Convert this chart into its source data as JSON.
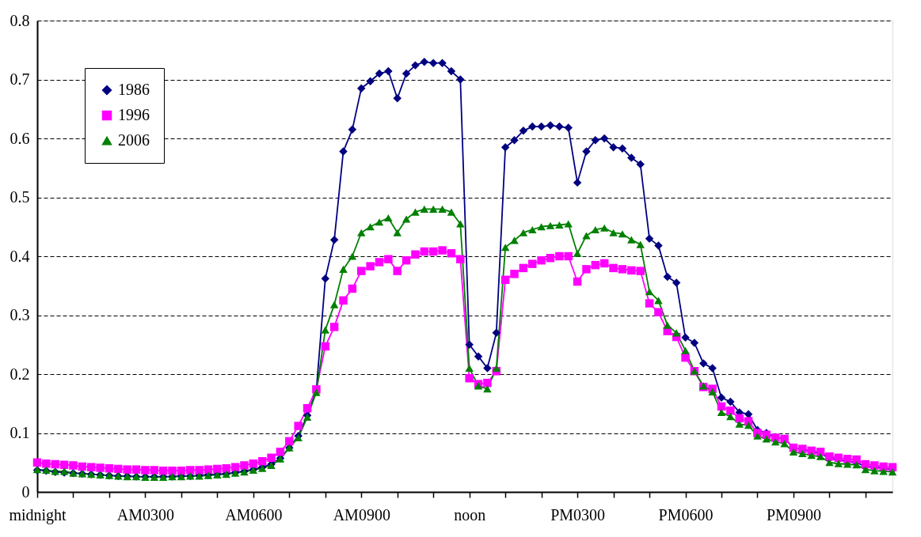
{
  "chart_data": {
    "type": "line",
    "categories": [
      "midnight",
      null,
      null,
      null,
      null,
      null,
      null,
      null,
      null,
      null,
      null,
      null,
      "AM0300",
      null,
      null,
      null,
      null,
      null,
      null,
      null,
      null,
      null,
      null,
      null,
      "AM0600",
      null,
      null,
      null,
      null,
      null,
      null,
      null,
      null,
      null,
      null,
      null,
      "AM0900",
      null,
      null,
      null,
      null,
      null,
      null,
      null,
      null,
      null,
      null,
      null,
      "noon",
      null,
      null,
      null,
      null,
      null,
      null,
      null,
      null,
      null,
      null,
      null,
      "PM0300",
      null,
      null,
      null,
      null,
      null,
      null,
      null,
      null,
      null,
      null,
      null,
      "PM0600",
      null,
      null,
      null,
      null,
      null,
      null,
      null,
      null,
      null,
      null,
      null,
      "PM0900",
      null,
      null,
      null,
      null,
      null,
      null,
      null,
      null,
      null,
      null,
      null
    ],
    "series": [
      {
        "name": "1986",
        "color": "#000080",
        "marker": "diamond",
        "values": [
          0.037,
          0.036,
          0.034,
          0.033,
          0.032,
          0.031,
          0.03,
          0.029,
          0.028,
          0.027,
          0.027,
          0.026,
          0.026,
          0.026,
          0.026,
          0.026,
          0.027,
          0.027,
          0.028,
          0.029,
          0.03,
          0.031,
          0.033,
          0.035,
          0.038,
          0.042,
          0.047,
          0.057,
          0.075,
          0.095,
          0.13,
          0.172,
          0.362,
          0.428,
          0.578,
          0.615,
          0.685,
          0.697,
          0.71,
          0.714,
          0.668,
          0.71,
          0.724,
          0.73,
          0.728,
          0.728,
          0.714,
          0.7,
          0.25,
          0.23,
          0.21,
          0.27,
          0.585,
          0.597,
          0.613,
          0.62,
          0.62,
          0.622,
          0.62,
          0.618,
          0.525,
          0.578,
          0.597,
          0.6,
          0.585,
          0.583,
          0.567,
          0.556,
          0.43,
          0.418,
          0.365,
          0.355,
          0.262,
          0.253,
          0.218,
          0.21,
          0.16,
          0.153,
          0.135,
          0.132,
          0.105,
          0.1,
          0.093,
          0.09,
          0.075,
          0.073,
          0.068,
          0.065,
          0.057,
          0.055,
          0.052,
          0.05,
          0.043,
          0.042,
          0.04,
          0.038
        ]
      },
      {
        "name": "1996",
        "color": "#ff00ff",
        "marker": "square",
        "values": [
          0.05,
          0.048,
          0.047,
          0.046,
          0.045,
          0.043,
          0.042,
          0.041,
          0.04,
          0.039,
          0.038,
          0.038,
          0.037,
          0.037,
          0.036,
          0.036,
          0.036,
          0.037,
          0.037,
          0.038,
          0.039,
          0.04,
          0.042,
          0.045,
          0.048,
          0.052,
          0.058,
          0.068,
          0.086,
          0.112,
          0.142,
          0.174,
          0.247,
          0.28,
          0.325,
          0.345,
          0.375,
          0.383,
          0.39,
          0.395,
          0.375,
          0.393,
          0.403,
          0.408,
          0.408,
          0.41,
          0.405,
          0.395,
          0.193,
          0.183,
          0.185,
          0.205,
          0.36,
          0.37,
          0.38,
          0.387,
          0.393,
          0.397,
          0.4,
          0.4,
          0.357,
          0.378,
          0.385,
          0.388,
          0.38,
          0.378,
          0.376,
          0.375,
          0.32,
          0.305,
          0.273,
          0.263,
          0.228,
          0.205,
          0.178,
          0.175,
          0.145,
          0.138,
          0.125,
          0.12,
          0.1,
          0.097,
          0.092,
          0.09,
          0.075,
          0.073,
          0.07,
          0.068,
          0.06,
          0.058,
          0.056,
          0.055,
          0.047,
          0.045,
          0.043,
          0.042
        ]
      },
      {
        "name": "2006",
        "color": "#008000",
        "marker": "triangle",
        "values": [
          0.038,
          0.037,
          0.035,
          0.035,
          0.032,
          0.031,
          0.03,
          0.029,
          0.028,
          0.027,
          0.026,
          0.026,
          0.025,
          0.025,
          0.025,
          0.026,
          0.026,
          0.027,
          0.027,
          0.028,
          0.029,
          0.03,
          0.032,
          0.034,
          0.037,
          0.04,
          0.045,
          0.056,
          0.075,
          0.092,
          0.127,
          0.169,
          0.275,
          0.318,
          0.378,
          0.4,
          0.44,
          0.45,
          0.458,
          0.465,
          0.44,
          0.463,
          0.475,
          0.48,
          0.48,
          0.48,
          0.475,
          0.455,
          0.21,
          0.18,
          0.175,
          0.21,
          0.415,
          0.427,
          0.44,
          0.445,
          0.45,
          0.452,
          0.453,
          0.455,
          0.405,
          0.435,
          0.445,
          0.448,
          0.44,
          0.438,
          0.428,
          0.42,
          0.34,
          0.325,
          0.283,
          0.27,
          0.24,
          0.205,
          0.18,
          0.17,
          0.135,
          0.128,
          0.115,
          0.113,
          0.095,
          0.09,
          0.085,
          0.082,
          0.068,
          0.065,
          0.062,
          0.06,
          0.05,
          0.048,
          0.047,
          0.046,
          0.038,
          0.036,
          0.035,
          0.034
        ]
      }
    ],
    "ylim": [
      0,
      0.8
    ],
    "yticks": [
      0,
      0.1,
      0.2,
      0.3,
      0.4,
      0.5,
      0.6,
      0.7,
      0.8
    ],
    "grid": "y",
    "legend": "top left",
    "line_style": "solid"
  }
}
